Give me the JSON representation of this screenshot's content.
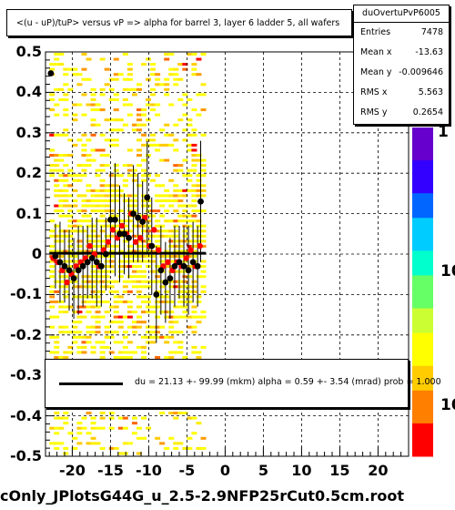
{
  "histogram_title": "<(u - uP)/tuP> versus   vP => alpha for barrel 3, layer 6 ladder 5, all wafers",
  "stats": {
    "name": "duOvertuPvP6005",
    "rows": [
      {
        "label": "Entries",
        "value": "7478"
      },
      {
        "label": "Mean x",
        "value": "-13.63"
      },
      {
        "label": "Mean y",
        "value": "-0.009646"
      },
      {
        "label": "RMS x",
        "value": "5.563"
      },
      {
        "label": "RMS y",
        "value": "0.2654"
      }
    ]
  },
  "fit_text": "du =   21.13 +- 99.99 (mkm) alpha =    0.59 +-  3.54 (mrad) prob = 1.000",
  "file_title": "cOnly_JPlotsG44G_u_2.5-2.9NFP25rCut0.5cm.root",
  "palette_labels": [
    "1",
    "10",
    "10"
  ],
  "colors": {
    "black_points": "#000000",
    "red_points": "#ff0000",
    "grid": "#000000",
    "palette": [
      "#ff0000",
      "#ff7f00",
      "#ffcc00",
      "#ffff00",
      "#ccff33",
      "#66ff66",
      "#00ffcc",
      "#00ccff",
      "#0066ff",
      "#3300ff",
      "#6600cc"
    ]
  },
  "chart_data": {
    "type": "scatter",
    "xlim": [
      -23.5,
      24
    ],
    "ylim": [
      -0.5,
      0.5
    ],
    "x_ticks": [
      "-20",
      "-15",
      "-10",
      "-5",
      "0",
      "5",
      "10",
      "15",
      "20"
    ],
    "y_ticks": [
      "0.5",
      "0.4",
      "0.3",
      "0.2",
      "0.1",
      "0",
      "-0.1",
      "-0.2",
      "-0.3",
      "-0.4",
      "-0.5"
    ],
    "grid": true,
    "fit_line": {
      "x": [
        -23,
        -2.5
      ],
      "y": [
        0.002,
        0.002
      ]
    },
    "series": [
      {
        "color": "black",
        "x": [
          -22.8,
          -22.2,
          -21.6,
          -21.0,
          -20.4,
          -19.8,
          -19.2,
          -18.6,
          -18.0,
          -17.4,
          -16.8,
          -16.2,
          -15.6,
          -15.0,
          -14.4,
          -13.8,
          -13.2,
          -12.6,
          -12.0,
          -11.4,
          -10.8,
          -10.2,
          -9.6,
          -9.0,
          -8.4,
          -7.8,
          -7.2,
          -6.6,
          -6.0,
          -5.4,
          -4.8,
          -4.2,
          -3.6,
          -3.2
        ],
        "y": [
          0.447,
          -0.005,
          -0.02,
          -0.03,
          -0.04,
          -0.06,
          -0.04,
          -0.03,
          -0.02,
          -0.01,
          -0.02,
          -0.03,
          0.0,
          0.085,
          0.085,
          0.05,
          0.05,
          0.04,
          0.1,
          0.09,
          0.08,
          0.14,
          0.02,
          -0.1,
          -0.04,
          -0.07,
          -0.06,
          -0.03,
          -0.02,
          -0.03,
          -0.04,
          -0.02,
          -0.03,
          0.13
        ],
        "err": [
          0.0,
          0.08,
          0.1,
          0.09,
          0.1,
          0.1,
          0.11,
          0.1,
          0.09,
          0.1,
          0.11,
          0.1,
          0.09,
          0.12,
          0.14,
          0.12,
          0.1,
          0.1,
          0.12,
          0.11,
          0.1,
          0.14,
          0.12,
          0.12,
          0.11,
          0.1,
          0.1,
          0.1,
          0.09,
          0.1,
          0.11,
          0.1,
          0.1,
          0.15
        ]
      },
      {
        "color": "red",
        "x": [
          -22.5,
          -21.9,
          -21.3,
          -20.7,
          -20.1,
          -19.5,
          -18.9,
          -18.3,
          -17.7,
          -17.1,
          -16.5,
          -15.9,
          -15.3,
          -14.7,
          -14.1,
          -13.5,
          -12.9,
          -12.3,
          -11.7,
          -11.1,
          -10.5,
          -9.9,
          -9.3,
          -8.7,
          -8.1,
          -7.5,
          -6.9,
          -6.3,
          -5.7,
          -5.1,
          -4.5,
          -3.9,
          -3.3
        ],
        "y": [
          -0.01,
          -0.02,
          -0.04,
          -0.07,
          -0.05,
          -0.03,
          -0.02,
          -0.01,
          0.02,
          0.0,
          -0.03,
          0.01,
          0.03,
          0.06,
          0.04,
          0.07,
          0.05,
          0.1,
          0.03,
          0.04,
          0.09,
          0.02,
          0.06,
          0.01,
          -0.03,
          -0.02,
          -0.04,
          -0.02,
          -0.03,
          -0.01,
          0.01,
          -0.03,
          0.02
        ]
      }
    ]
  }
}
